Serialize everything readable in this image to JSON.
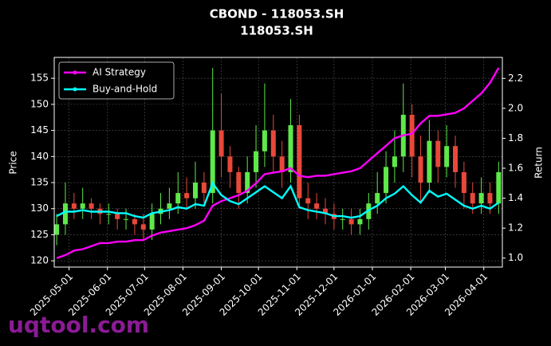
{
  "chart_data": {
    "type": "candlestick",
    "title": "CBOND - 118053.SH",
    "subtitle": "118053.SH",
    "ylabel": "Price",
    "y2label": "Return",
    "watermark": "uqtool.com",
    "x": [
      "2025-04-21",
      "2025-04-28",
      "2025-05-05",
      "2025-05-12",
      "2025-05-19",
      "2025-05-26",
      "2025-06-02",
      "2025-06-09",
      "2025-06-16",
      "2025-06-23",
      "2025-06-30",
      "2025-07-07",
      "2025-07-14",
      "2025-07-21",
      "2025-07-28",
      "2025-08-04",
      "2025-08-11",
      "2025-08-18",
      "2025-08-25",
      "2025-09-01",
      "2025-09-08",
      "2025-09-15",
      "2025-09-22",
      "2025-09-29",
      "2025-10-06",
      "2025-10-13",
      "2025-10-20",
      "2025-10-27",
      "2025-11-03",
      "2025-11-10",
      "2025-11-17",
      "2025-11-24",
      "2025-12-01",
      "2025-12-08",
      "2025-12-15",
      "2025-12-22",
      "2025-12-29",
      "2026-01-05",
      "2026-01-12",
      "2026-01-19",
      "2026-01-26",
      "2026-02-02",
      "2026-02-09",
      "2026-02-16",
      "2026-02-23",
      "2026-03-02",
      "2026-03-09",
      "2026-03-16",
      "2026-03-23",
      "2026-03-30",
      "2026-04-06",
      "2026-04-13"
    ],
    "open": [
      125,
      127,
      131,
      130,
      131,
      130,
      129,
      129,
      128,
      128,
      127,
      126,
      129,
      130,
      131,
      133,
      132,
      135,
      133,
      145,
      140,
      137,
      133,
      137,
      141,
      145,
      140,
      137,
      146,
      132,
      131,
      130,
      129,
      128,
      128,
      127,
      128,
      131,
      133,
      138,
      140,
      148,
      140,
      135,
      143,
      138,
      142,
      137,
      133,
      131,
      133,
      131
    ],
    "high": [
      129,
      135,
      133,
      134,
      132,
      131,
      131,
      130,
      130,
      129,
      129,
      131,
      133,
      134,
      137,
      136,
      139,
      137,
      157,
      152,
      142,
      138,
      140,
      146,
      154,
      148,
      143,
      151,
      148,
      135,
      133,
      132,
      131,
      130,
      130,
      130,
      133,
      137,
      141,
      145,
      154,
      150,
      144,
      147,
      145,
      146,
      144,
      139,
      135,
      136,
      135,
      139
    ],
    "low": [
      123,
      125,
      128,
      128,
      128,
      127,
      127,
      126,
      126,
      125,
      124,
      124,
      127,
      128,
      129,
      130,
      130,
      131,
      131,
      136,
      134,
      130,
      131,
      134,
      138,
      137,
      134,
      135,
      130,
      128,
      128,
      127,
      126,
      126,
      125,
      125,
      126,
      129,
      131,
      135,
      137,
      136,
      131,
      133,
      135,
      136,
      134,
      130,
      129,
      129,
      129,
      129
    ],
    "close": [
      127,
      131,
      130,
      131,
      130,
      129,
      129,
      128,
      128,
      127,
      126,
      129,
      130,
      131,
      133,
      132,
      135,
      133,
      145,
      140,
      137,
      133,
      137,
      141,
      145,
      140,
      137,
      146,
      132,
      131,
      130,
      129,
      128,
      128,
      127,
      128,
      131,
      133,
      138,
      140,
      148,
      140,
      135,
      143,
      138,
      142,
      137,
      133,
      131,
      133,
      131,
      137
    ],
    "up_color": "#5ee84a",
    "down_color": "#e8483a",
    "series": [
      {
        "name": "AI Strategy",
        "color": "#ff00ff",
        "axis": "y2",
        "values": [
          1.0,
          1.02,
          1.05,
          1.06,
          1.08,
          1.1,
          1.1,
          1.11,
          1.11,
          1.12,
          1.12,
          1.15,
          1.17,
          1.18,
          1.19,
          1.2,
          1.22,
          1.25,
          1.35,
          1.38,
          1.4,
          1.42,
          1.45,
          1.5,
          1.56,
          1.57,
          1.58,
          1.6,
          1.55,
          1.54,
          1.55,
          1.55,
          1.56,
          1.57,
          1.58,
          1.6,
          1.65,
          1.7,
          1.75,
          1.8,
          1.82,
          1.83,
          1.9,
          1.95,
          1.95,
          1.96,
          1.97,
          2.0,
          2.05,
          2.1,
          2.17,
          2.27
        ]
      },
      {
        "name": "Buy-and-Hold",
        "color": "#00ffff",
        "axis": "y2",
        "values": [
          1.28,
          1.31,
          1.31,
          1.32,
          1.31,
          1.31,
          1.31,
          1.3,
          1.3,
          1.28,
          1.27,
          1.3,
          1.31,
          1.32,
          1.34,
          1.33,
          1.36,
          1.35,
          1.5,
          1.42,
          1.38,
          1.36,
          1.4,
          1.44,
          1.48,
          1.44,
          1.4,
          1.48,
          1.34,
          1.32,
          1.31,
          1.3,
          1.28,
          1.28,
          1.27,
          1.28,
          1.32,
          1.35,
          1.4,
          1.43,
          1.48,
          1.42,
          1.37,
          1.45,
          1.41,
          1.43,
          1.39,
          1.35,
          1.33,
          1.35,
          1.33,
          1.37
        ]
      }
    ],
    "xlim": [
      "2025-04-19",
      "2026-04-16"
    ],
    "xticks": [
      "2025-05-01",
      "2025-06-01",
      "2025-07-01",
      "2025-08-01",
      "2025-09-01",
      "2025-10-01",
      "2025-11-01",
      "2025-12-01",
      "2026-01-01",
      "2026-02-01",
      "2026-03-01",
      "2026-04-01"
    ],
    "ylim": [
      118.8,
      159
    ],
    "yticks": [
      120,
      125,
      130,
      135,
      140,
      145,
      150,
      155
    ],
    "y2lim": [
      0.94,
      2.34
    ],
    "y2ticks": [
      {
        "value": 1,
        "label": "1.0"
      },
      1.2,
      1.4,
      1.6,
      1.8,
      {
        "value": 2,
        "label": "2.0"
      },
      2.2
    ],
    "grid": true,
    "legend": "upper left"
  }
}
